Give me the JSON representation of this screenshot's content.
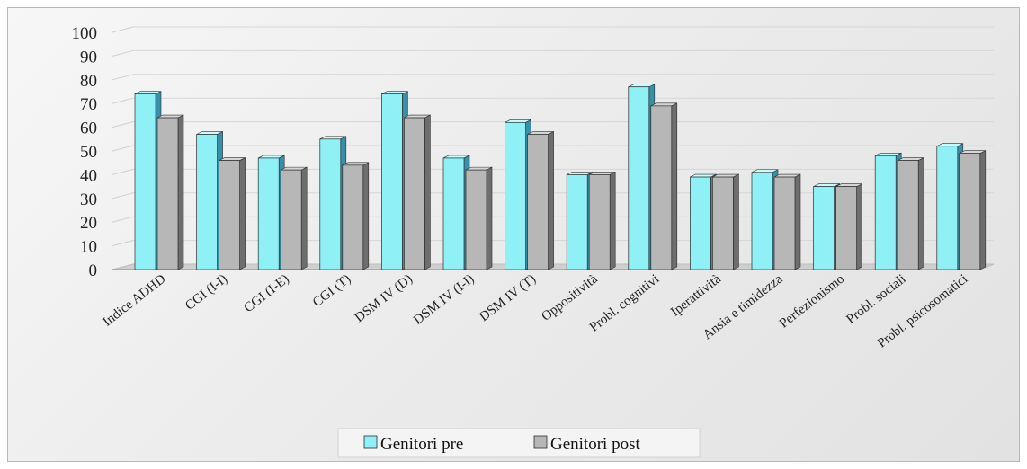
{
  "chart_data": {
    "type": "bar",
    "categories": [
      "Indice ADHD",
      "CGI (I-I)",
      "CGI (I-E)",
      "CGI (T)",
      "DSM IV (D)",
      "DSM IV (I-I)",
      "DSM IV (T)",
      "Oppositività",
      "Probl. cognitivi",
      "Iperattività",
      "Ansia e timidezza",
      "Perfezionismo",
      "Probl. sociali",
      "Probl. psicosomatici"
    ],
    "series": [
      {
        "name": "Genitori pre",
        "values": [
          74,
          57,
          47,
          55,
          74,
          47,
          62,
          40,
          77,
          39,
          41,
          35,
          48,
          52
        ]
      },
      {
        "name": "Genitori post",
        "values": [
          64,
          46,
          42,
          44,
          64,
          42,
          57,
          40,
          69,
          39,
          39,
          35,
          46,
          49
        ]
      }
    ],
    "yticks": [
      "0",
      "10",
      "20",
      "30",
      "40",
      "50",
      "60",
      "70",
      "80",
      "90",
      "100"
    ],
    "ylim": [
      0,
      100
    ],
    "grid": true,
    "legend_position": "bottom",
    "colors": {
      "pre": "#8ff0f6",
      "pre_side": "#3a8fa8",
      "post": "#b7b7b7",
      "post_side": "#6e6e6e"
    }
  }
}
